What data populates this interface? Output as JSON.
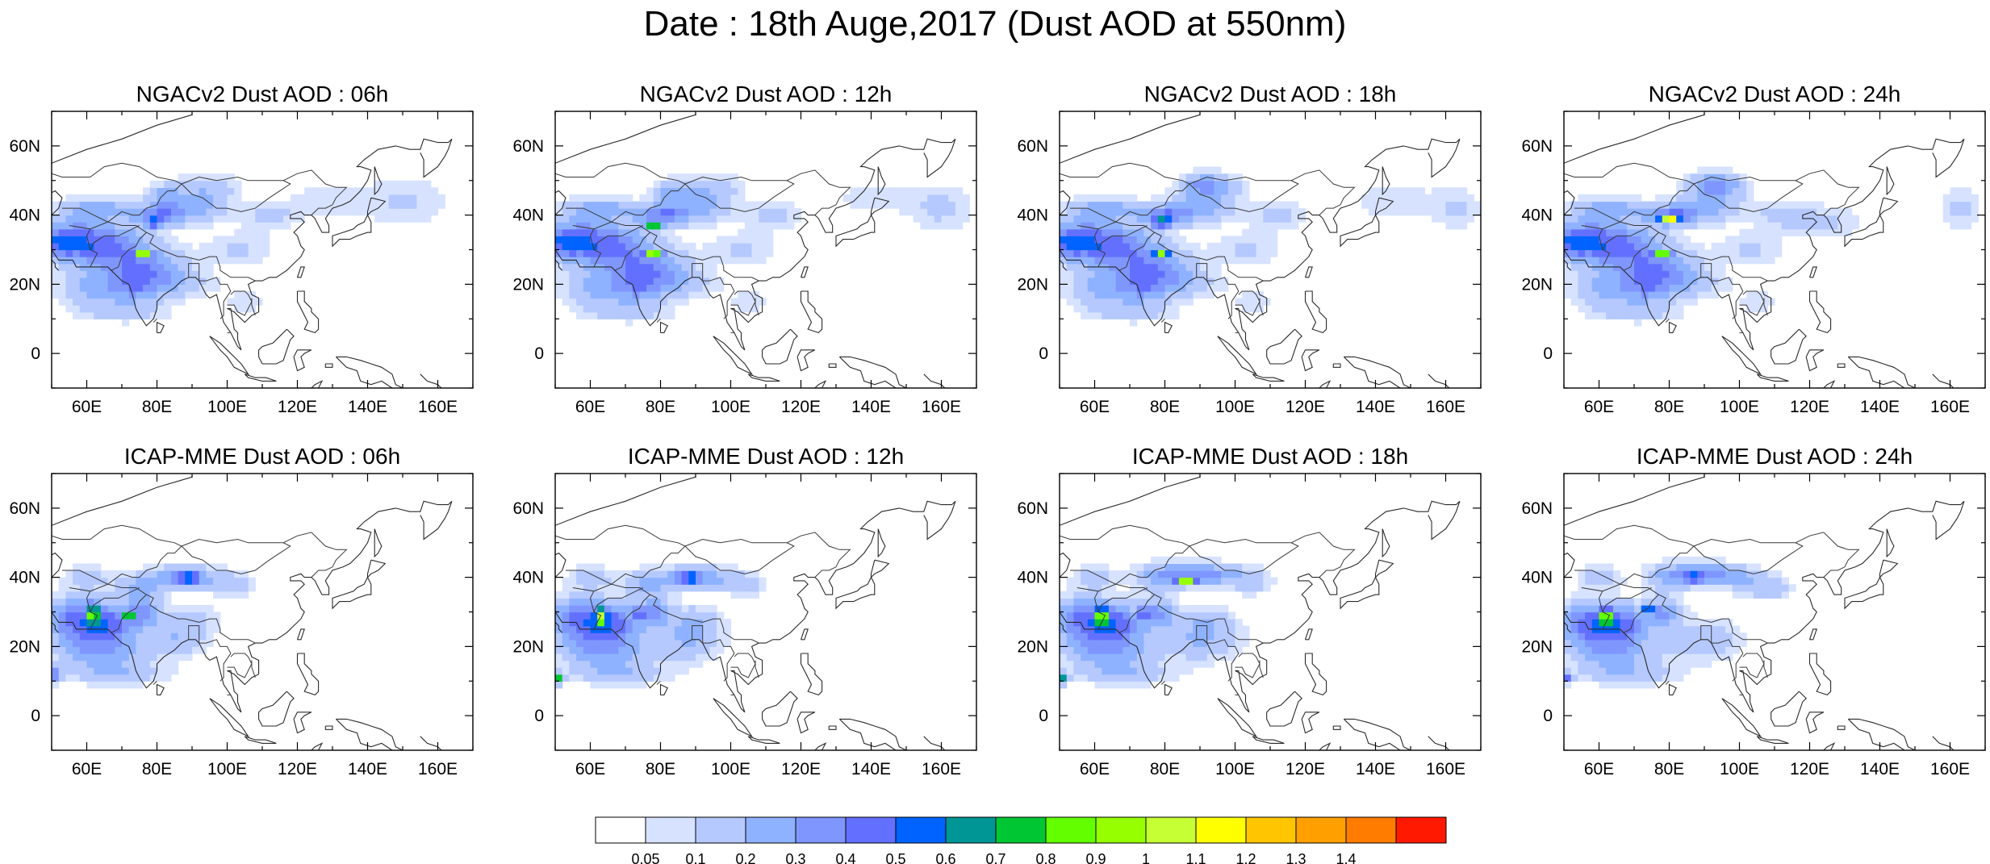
{
  "title": "Date : 18th Auge,2017 (Dust AOD at 550nm)",
  "lat_labels": [
    "60N",
    "40N",
    "20N",
    "0"
  ],
  "lon_labels": [
    "60E",
    "80E",
    "100E",
    "120E",
    "140E",
    "160E"
  ],
  "panels": [
    {
      "title": "NGACv2 Dust AOD : 06h",
      "model": "NGACv2",
      "hour": "06h"
    },
    {
      "title": "NGACv2 Dust AOD : 12h",
      "model": "NGACv2",
      "hour": "12h"
    },
    {
      "title": "NGACv2 Dust AOD : 18h",
      "model": "NGACv2",
      "hour": "18h"
    },
    {
      "title": "NGACv2 Dust AOD : 24h",
      "model": "NGACv2",
      "hour": "24h"
    },
    {
      "title": "ICAP-MME Dust AOD : 06h",
      "model": "ICAP-MME",
      "hour": "06h"
    },
    {
      "title": "ICAP-MME Dust AOD : 12h",
      "model": "ICAP-MME",
      "hour": "12h"
    },
    {
      "title": "ICAP-MME Dust AOD : 18h",
      "model": "ICAP-MME",
      "hour": "18h"
    },
    {
      "title": "ICAP-MME Dust AOD : 24h",
      "model": "ICAP-MME",
      "hour": "24h"
    }
  ],
  "colorbar": {
    "labels": [
      "0.05",
      "0.1",
      "0.2",
      "0.3",
      "0.4",
      "0.5",
      "0.6",
      "0.7",
      "0.8",
      "0.9",
      "1",
      "1.1",
      "1.2",
      "1.3",
      "1.4"
    ],
    "colors": [
      "#ffffff",
      "#d6e2ff",
      "#b5c9ff",
      "#8eb2ff",
      "#7f96ff",
      "#6370ff",
      "#0063ff",
      "#009696",
      "#00c633",
      "#63ff00",
      "#96ff00",
      "#c6ff33",
      "#ffff00",
      "#ffc600",
      "#ffa000",
      "#ff7c00",
      "#ff1900"
    ]
  }
}
